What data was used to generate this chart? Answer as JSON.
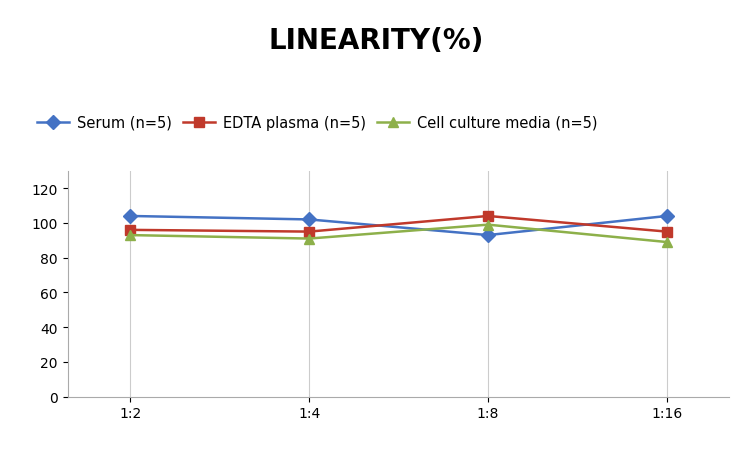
{
  "title": "LINEARITY(%)",
  "x_labels": [
    "1:2",
    "1:4",
    "1:8",
    "1:16"
  ],
  "series": [
    {
      "label": "Serum (n=5)",
      "values": [
        104,
        102,
        93,
        104
      ],
      "color": "#4472C4",
      "marker": "D"
    },
    {
      "label": "EDTA plasma (n=5)",
      "values": [
        96,
        95,
        104,
        95
      ],
      "color": "#C0392B",
      "marker": "s"
    },
    {
      "label": "Cell culture media (n=5)",
      "values": [
        93,
        91,
        99,
        89
      ],
      "color": "#8DB04A",
      "marker": "^"
    }
  ],
  "ylim": [
    0,
    130
  ],
  "yticks": [
    0,
    20,
    40,
    60,
    80,
    100,
    120
  ],
  "title_fontsize": 20,
  "legend_fontsize": 10.5,
  "tick_fontsize": 10,
  "background_color": "#ffffff",
  "grid_color": "#cccccc",
  "line_width": 1.8,
  "marker_size": 7
}
